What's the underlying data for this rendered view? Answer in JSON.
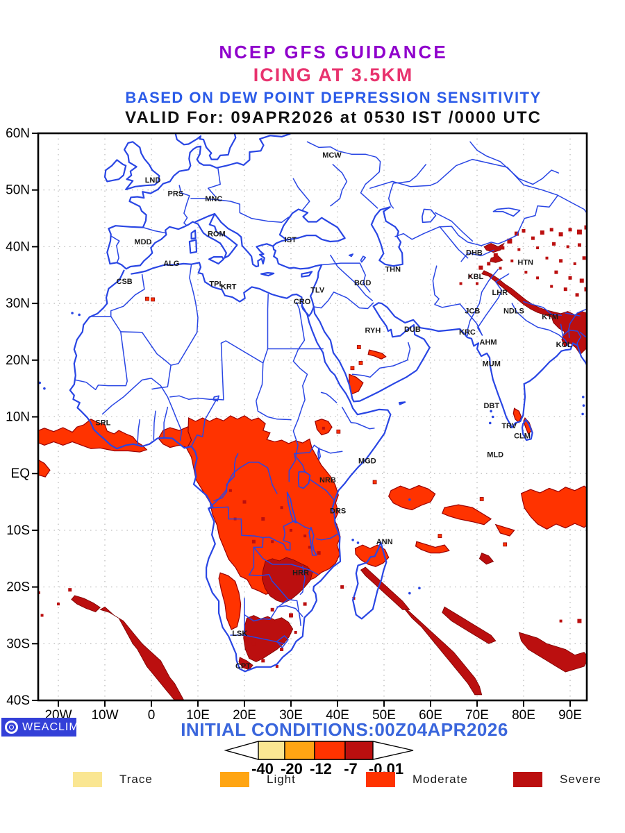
{
  "header": {
    "line1": {
      "text": "NCEP GFS GUIDANCE",
      "color": "#8F00CC"
    },
    "line2": {
      "text": "ICING AT 3.5KM",
      "color": "#E8336E"
    },
    "line3": {
      "text": "BASED ON DEW POINT DEPRESSION SENSITIVITY",
      "color": "#2B5BE8"
    },
    "line4": {
      "text": "VALID For: 09APR2026 at 0530 IST /0000 UTC",
      "color": "#111111"
    }
  },
  "map": {
    "lat_ticks": [
      {
        "label": "60N",
        "deg": 60
      },
      {
        "label": "50N",
        "deg": 50
      },
      {
        "label": "40N",
        "deg": 40
      },
      {
        "label": "30N",
        "deg": 30
      },
      {
        "label": "20N",
        "deg": 20
      },
      {
        "label": "10N",
        "deg": 10
      },
      {
        "label": "EQ",
        "deg": 0
      },
      {
        "label": "10S",
        "deg": -10
      },
      {
        "label": "20S",
        "deg": -20
      },
      {
        "label": "30S",
        "deg": -30
      },
      {
        "label": "40S",
        "deg": -40
      }
    ],
    "lon_ticks": [
      {
        "label": "20W",
        "deg": -20
      },
      {
        "label": "10W",
        "deg": -10
      },
      {
        "label": "0",
        "deg": 0
      },
      {
        "label": "10E",
        "deg": 10
      },
      {
        "label": "20E",
        "deg": 20
      },
      {
        "label": "30E",
        "deg": 30
      },
      {
        "label": "40E",
        "deg": 40
      },
      {
        "label": "50E",
        "deg": 50
      },
      {
        "label": "60E",
        "deg": 60
      },
      {
        "label": "70E",
        "deg": 70
      },
      {
        "label": "80E",
        "deg": 80
      },
      {
        "label": "90E",
        "deg": 90
      }
    ],
    "colors": {
      "coast": "#2946E4",
      "grid": "#B0B0B0",
      "frame": "#000000",
      "moderate": "#FF3300",
      "moderate_edge": "#990000",
      "severe": "#BB0F0F",
      "severe_edge": "#7A0000",
      "city_label": "#1A1A1A",
      "tick_label": "#000000"
    },
    "cities": [
      {
        "code": "MCW",
        "lon": 38.8,
        "lat": 56.2
      },
      {
        "code": "LND",
        "lon": 0.3,
        "lat": 51.8
      },
      {
        "code": "PRS",
        "lon": 5.2,
        "lat": 49.4
      },
      {
        "code": "MNC",
        "lon": 13.4,
        "lat": 48.5
      },
      {
        "code": "ROM",
        "lon": 14.0,
        "lat": 42.3
      },
      {
        "code": "IST",
        "lon": 29.9,
        "lat": 41.3
      },
      {
        "code": "MDD",
        "lon": -1.8,
        "lat": 40.9
      },
      {
        "code": "ALG",
        "lon": 4.3,
        "lat": 37.1
      },
      {
        "code": "CSB",
        "lon": -5.8,
        "lat": 33.9
      },
      {
        "code": "TPL",
        "lon": 14.0,
        "lat": 33.5
      },
      {
        "code": "KRT",
        "lon": 16.6,
        "lat": 33.0
      },
      {
        "code": "TLV",
        "lon": 35.7,
        "lat": 32.4
      },
      {
        "code": "CRO",
        "lon": 32.4,
        "lat": 30.4
      },
      {
        "code": "THN",
        "lon": 51.9,
        "lat": 36.1
      },
      {
        "code": "BGD",
        "lon": 45.4,
        "lat": 33.7
      },
      {
        "code": "DHB",
        "lon": 69.4,
        "lat": 39.0
      },
      {
        "code": "HTN",
        "lon": 80.4,
        "lat": 37.3
      },
      {
        "code": "KBL",
        "lon": 69.7,
        "lat": 34.8
      },
      {
        "code": "LHR",
        "lon": 74.9,
        "lat": 32.0
      },
      {
        "code": "JCB",
        "lon": 69.0,
        "lat": 28.7
      },
      {
        "code": "NDLS",
        "lon": 77.9,
        "lat": 28.7
      },
      {
        "code": "KTM",
        "lon": 85.7,
        "lat": 27.7
      },
      {
        "code": "RYH",
        "lon": 47.6,
        "lat": 25.3
      },
      {
        "code": "DUB",
        "lon": 56.1,
        "lat": 25.5
      },
      {
        "code": "KRC",
        "lon": 67.9,
        "lat": 25.0
      },
      {
        "code": "AHM",
        "lon": 72.4,
        "lat": 23.2
      },
      {
        "code": "KOL",
        "lon": 88.7,
        "lat": 22.8
      },
      {
        "code": "MUM",
        "lon": 73.1,
        "lat": 19.4
      },
      {
        "code": "DBT",
        "lon": 73.1,
        "lat": 12.0
      },
      {
        "code": "TRV",
        "lon": 76.9,
        "lat": 8.5
      },
      {
        "code": "CLM",
        "lon": 79.7,
        "lat": 6.7
      },
      {
        "code": "MLD",
        "lon": 73.9,
        "lat": 3.4
      },
      {
        "code": "MGD",
        "lon": 46.4,
        "lat": 2.3
      },
      {
        "code": "NRB",
        "lon": 37.9,
        "lat": -1.1
      },
      {
        "code": "DRS",
        "lon": 40.1,
        "lat": -6.5
      },
      {
        "code": "ANN",
        "lon": 50.1,
        "lat": -12.0
      },
      {
        "code": "SRL",
        "lon": -10.4,
        "lat": 9.0
      },
      {
        "code": "HRR",
        "lon": 32.1,
        "lat": -17.4
      },
      {
        "code": "LSK",
        "lon": 19.0,
        "lat": -28.1
      },
      {
        "code": "CPT",
        "lon": 19.7,
        "lat": -33.9
      }
    ]
  },
  "footer": {
    "logo_text": "WEACLIM",
    "logo_bg": "#3340D8",
    "initial_conditions": "INITIAL CONDITIONS:00Z04APR2026",
    "initial_conditions_color": "#3A66DC",
    "colorbar": {
      "values": [
        "-40",
        "-20",
        "-12",
        "-7",
        "-0.01"
      ],
      "cells": [
        {
          "name": "trace",
          "color": "#FAE692"
        },
        {
          "name": "light",
          "color": "#FFA513"
        },
        {
          "name": "moderate",
          "color": "#FF3300"
        },
        {
          "name": "severe",
          "color": "#BB0F0F"
        }
      ]
    },
    "legend": [
      {
        "label": "Trace",
        "color": "#FAE692"
      },
      {
        "label": "Light",
        "color": "#FFA513"
      },
      {
        "label": "Moderate",
        "color": "#FF3300"
      },
      {
        "label": "Severe",
        "color": "#BB0F0F"
      }
    ]
  }
}
